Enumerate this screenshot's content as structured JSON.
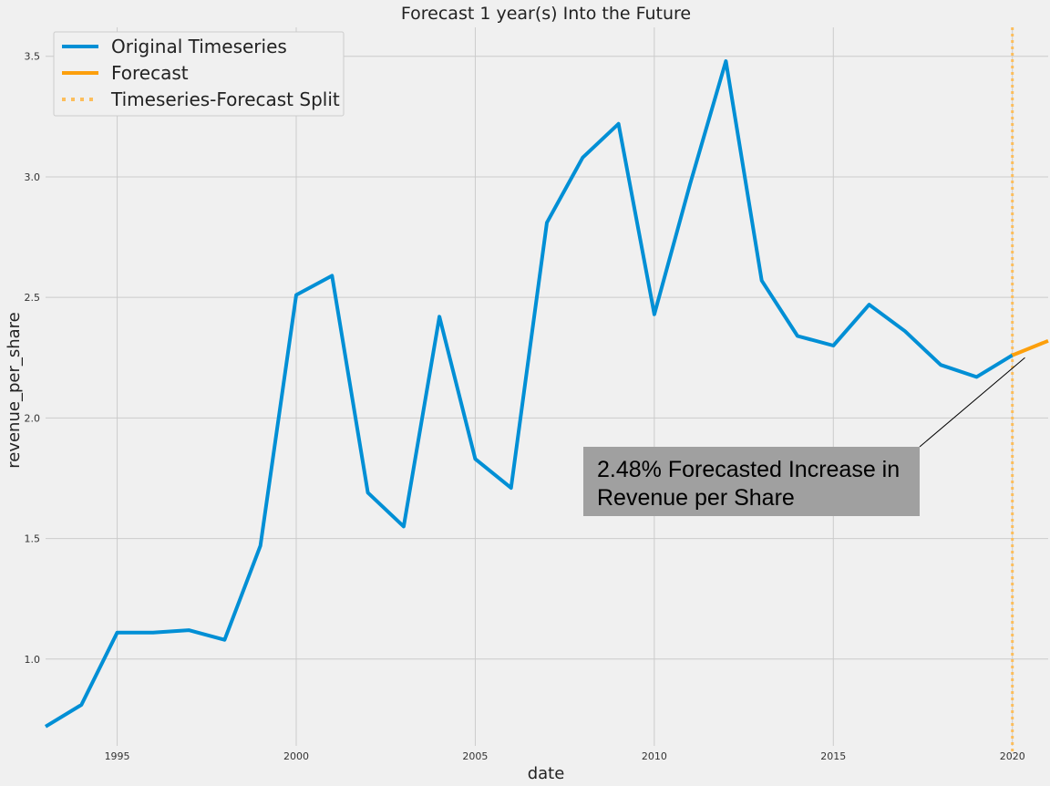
{
  "chart_data": {
    "type": "line",
    "title": "Forecast 1 year(s) Into the Future",
    "xlabel": "date",
    "ylabel": "revenue_per_share",
    "xlim": [
      1993,
      2021
    ],
    "ylim": [
      0.64,
      3.62
    ],
    "x_ticks": [
      1995,
      2000,
      2005,
      2010,
      2015,
      2020
    ],
    "y_ticks": [
      1.0,
      1.5,
      2.0,
      2.5,
      3.0,
      3.5
    ],
    "x_tick_labels": [
      "1995",
      "2000",
      "2005",
      "2010",
      "2015",
      "2020"
    ],
    "y_tick_labels": [
      "1.0",
      "1.5",
      "2.0",
      "2.5",
      "3.0",
      "3.5"
    ],
    "grid": true,
    "legend_position": "top-left",
    "series": [
      {
        "name": "Original Timeseries",
        "color": "#008fd5",
        "x": [
          1993,
          1994,
          1995,
          1996,
          1997,
          1998,
          1999,
          2000,
          2001,
          2002,
          2003,
          2004,
          2005,
          2006,
          2007,
          2008,
          2009,
          2010,
          2011,
          2012,
          2013,
          2014,
          2015,
          2016,
          2017,
          2018,
          2019,
          2020
        ],
        "y": [
          0.72,
          0.81,
          1.11,
          1.11,
          1.12,
          1.08,
          1.47,
          2.51,
          2.59,
          1.69,
          1.55,
          2.42,
          1.83,
          1.71,
          2.81,
          3.08,
          3.22,
          2.43,
          2.97,
          3.48,
          2.57,
          2.34,
          2.3,
          2.47,
          2.36,
          2.22,
          2.17,
          2.26
        ]
      },
      {
        "name": "Forecast",
        "color": "#fc9f0c",
        "x": [
          2020,
          2021
        ],
        "y": [
          2.26,
          2.32
        ]
      }
    ],
    "split": {
      "name": "Timeseries-Forecast Split",
      "x": 2020,
      "color": "#fcbe5c"
    },
    "annotation": {
      "lines": [
        "2.48% Forecasted Increase in",
        "Revenue per Share"
      ],
      "points_to": {
        "x": 2020.35,
        "y": 2.25
      }
    }
  }
}
